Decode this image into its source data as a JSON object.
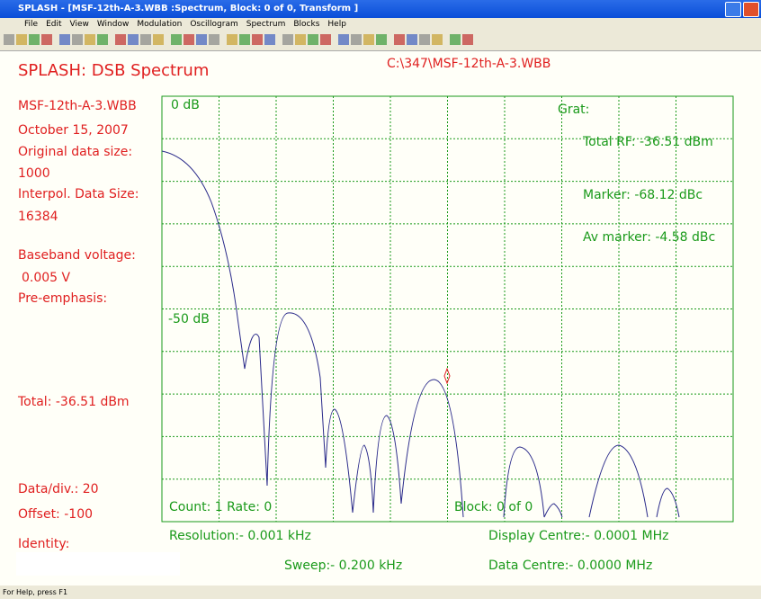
{
  "window": {
    "title": "SPLASH - [MSF-12th-A-3.WBB :Spectrum, Block: 0 of 0, Transform ]"
  },
  "menu": [
    "File",
    "Edit",
    "View",
    "Window",
    "Modulation",
    "Oscillogram",
    "Spectrum",
    "Blocks",
    "Help"
  ],
  "header": {
    "title": "SPLASH: DSB Spectrum",
    "path": "C:\\347\\MSF-12th-A-3.WBB"
  },
  "info": [
    "MSF-12th-A-3.WBB",
    "October 15, 2007",
    "Original data size:",
    "1000",
    "Interpol. Data Size:",
    "16384",
    "Baseband voltage:",
    "0.005 V",
    "Pre-emphasis:",
    "Total: -36.51 dBm",
    "Data/div.: 20",
    "Offset: -100",
    "Identity:"
  ],
  "plot": {
    "top_label": "0 dB",
    "mid_label": "-50 dB",
    "grat": "Grat:",
    "total_rf": "Total RF: -36.51 dBm",
    "marker": "Marker: -68.12 dBc",
    "av_marker": "Av marker: -4.58 dBc",
    "count": "Count: 1 Rate: 0",
    "block": "Block: 0 of 0"
  },
  "footer": {
    "resolution": "Resolution:- 0.001 kHz",
    "display_centre": "Display Centre:- 0.0001 MHz",
    "sweep": "Sweep:- 0.200 kHz",
    "data_centre": "Data Centre:- 0.0000 MHz"
  },
  "status": "For Help, press F1"
}
